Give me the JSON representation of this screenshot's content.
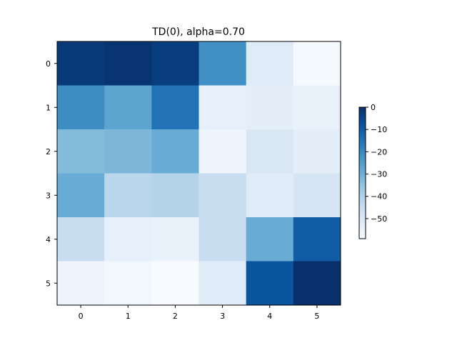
{
  "chart_data": {
    "type": "heatmap",
    "title": "TD(0), alpha=0.70",
    "xlabel": "",
    "ylabel": "",
    "x_ticks": [
      "0",
      "1",
      "2",
      "3",
      "4",
      "5"
    ],
    "y_ticks": [
      "0",
      "1",
      "2",
      "3",
      "4",
      "5"
    ],
    "colormap": "Blues_r",
    "vmin": -59,
    "vmax": 0,
    "colorbar_ticks": [
      "0",
      "−10",
      "−20",
      "−30",
      "−40",
      "−50"
    ],
    "colorbar_tick_values": [
      0,
      -10,
      -20,
      -30,
      -40,
      -50
    ],
    "grid": false,
    "values": [
      [
        -2,
        -1,
        -3,
        -22,
        -52,
        -58
      ],
      [
        -21,
        -27,
        -15,
        -54,
        -53,
        -55
      ],
      [
        -33,
        -32,
        -29,
        -56,
        -50,
        -53
      ],
      [
        -29,
        -42,
        -41,
        -45,
        -52,
        -49
      ],
      [
        -45,
        -54,
        -55,
        -45,
        -29,
        -10
      ],
      [
        -56,
        -57,
        -59,
        -52,
        -8,
        0
      ]
    ]
  }
}
